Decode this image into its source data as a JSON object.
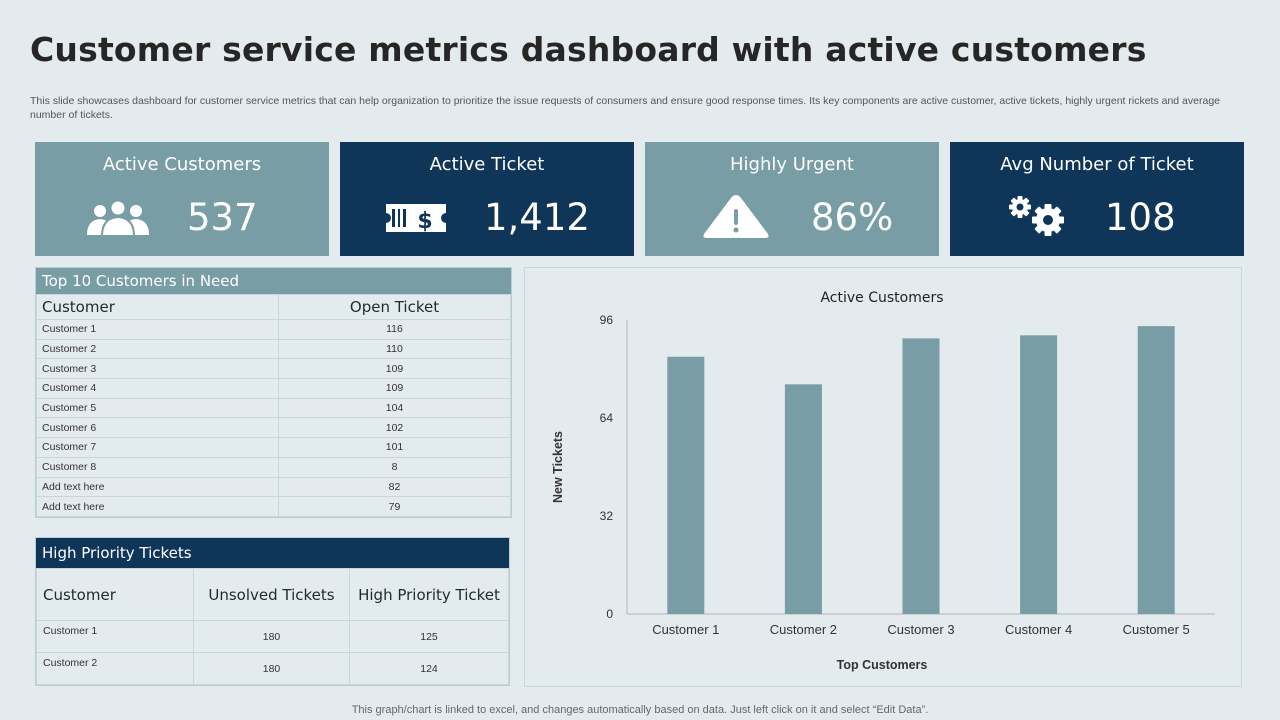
{
  "title": "Customer service metrics dashboard with active customers",
  "subtitle": "This slide showcases dashboard for customer service metrics that can help organization to prioritize the issue requests of consumers and ensure good response times. Its key components are active customer, active tickets, highly urgent rickets and average number of tickets.",
  "kpis": [
    {
      "label": "Active Customers",
      "value": "537",
      "icon": "users-icon"
    },
    {
      "label": "Active Ticket",
      "value": "1,412",
      "icon": "ticket-icon"
    },
    {
      "label": "Highly Urgent",
      "value": "86%",
      "icon": "warning-icon"
    },
    {
      "label": "Avg Number of Ticket",
      "value": "108",
      "icon": "gears-icon"
    }
  ],
  "top_customers": {
    "title": "Top 10 Customers  in Need",
    "headers": [
      "Customer",
      "Open Ticket"
    ],
    "rows": [
      [
        "Customer 1",
        "116"
      ],
      [
        "Customer 2",
        "110"
      ],
      [
        "Customer 3",
        "109"
      ],
      [
        "Customer 4",
        "109"
      ],
      [
        "Customer 5",
        "104"
      ],
      [
        "Customer 6",
        "102"
      ],
      [
        "Customer 7",
        "101"
      ],
      [
        "Customer 8",
        "8"
      ],
      [
        "Add text here",
        "82"
      ],
      [
        "Add text here",
        "79"
      ]
    ]
  },
  "high_priority": {
    "title": "High Priority  Tickets",
    "headers": [
      "Customer",
      "Unsolved  Tickets",
      "High Priority  Ticket"
    ],
    "rows": [
      [
        "Customer 1",
        "180",
        "125"
      ],
      [
        "Customer 2",
        "180",
        "124"
      ]
    ]
  },
  "chart_data": {
    "type": "bar",
    "title": "Active Customers",
    "categories": [
      "Customer 1",
      "Customer 2",
      "Customer 3",
      "Customer 4",
      "Customer 5"
    ],
    "values": [
      84,
      75,
      90,
      91,
      94
    ],
    "xlabel": "Top Customers",
    "ylabel": "New Tickets",
    "ylim": [
      0,
      96
    ],
    "yticks": [
      0,
      32,
      64,
      96
    ],
    "bar_color": "#789da5",
    "grid": false
  },
  "colors": {
    "light_card": "#789da5",
    "dark_card": "#0f3558",
    "background": "#e4ebee"
  },
  "footnote": "This graph/chart is linked to excel,  and changes automatically based on data. Just left click on it and select “Edit Data”."
}
